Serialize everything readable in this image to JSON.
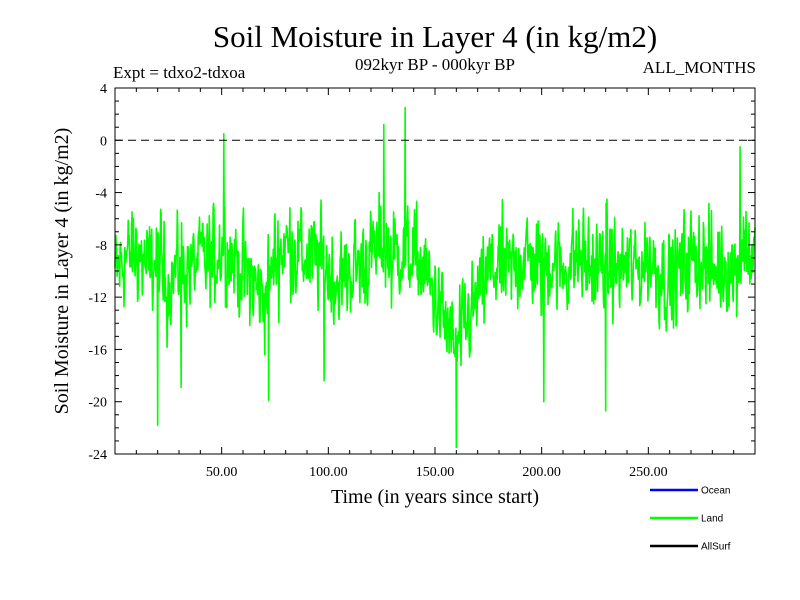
{
  "chart_data": {
    "type": "line",
    "title": "Soil Moisture in Layer 4 (in kg/m2)",
    "subtitle_left": "Expt = tdxo2-tdxoa",
    "subtitle_center": "092kyr BP - 000kyr BP",
    "subtitle_right": "ALL_MONTHS",
    "xlabel": "Time (in years since start)",
    "ylabel": "Soil Moisture in Layer 4 (in kg/m2)",
    "xlim": [
      0,
      300
    ],
    "ylim": [
      -24,
      4
    ],
    "xticks": [
      50,
      100,
      150,
      200,
      250
    ],
    "xtick_labels": [
      "50.00",
      "100.00",
      "150.00",
      "200.00",
      "250.00"
    ],
    "yticks": [
      4,
      0,
      -4,
      -8,
      -12,
      -16,
      -20,
      -24
    ],
    "ytick_labels": [
      "4",
      "0",
      "-4",
      "-8",
      "-12",
      "-16",
      "-20",
      "-24"
    ],
    "reference_line": {
      "y": 0,
      "style": "dashed"
    },
    "legend": [
      {
        "name": "Ocean",
        "color": "#0000ff"
      },
      {
        "name": "Land",
        "color": "#00ff00"
      },
      {
        "name": "AllSurf",
        "color": "#000000"
      }
    ],
    "series": [
      {
        "name": "Land",
        "color": "#00ff00",
        "x": [
          0,
          5,
          10,
          15,
          20,
          25,
          30,
          35,
          40,
          45,
          50,
          55,
          60,
          65,
          70,
          75,
          80,
          85,
          90,
          95,
          100,
          105,
          110,
          115,
          120,
          125,
          130,
          135,
          140,
          145,
          150,
          155,
          160,
          165,
          170,
          175,
          180,
          185,
          190,
          195,
          200,
          205,
          210,
          215,
          220,
          225,
          230,
          235,
          240,
          245,
          250,
          255,
          260,
          265,
          270,
          275,
          280,
          285,
          290,
          295,
          300
        ],
        "y": [
          -10,
          -9,
          -8.5,
          -10,
          -9,
          -11,
          -9.5,
          -10,
          -9,
          -9.5,
          -8,
          -9,
          -10,
          -11,
          -12,
          -9,
          -8,
          -8.5,
          -9,
          -9,
          -10,
          -11,
          -10,
          -9.5,
          -9,
          -8,
          -9,
          -8.5,
          -9,
          -10,
          -12,
          -14,
          -16,
          -14,
          -12,
          -10,
          -9.5,
          -10,
          -9,
          -9,
          -10,
          -9,
          -10,
          -9,
          -9,
          -10,
          -9,
          -10,
          -9.5,
          -10,
          -9,
          -10,
          -11,
          -10,
          -9,
          -9,
          -10,
          -9.5,
          -10,
          -8,
          -9
        ],
        "spikes": [
          {
            "x": 20,
            "y": -21.8
          },
          {
            "x": 31,
            "y": -18.9
          },
          {
            "x": 51,
            "y": 0.5
          },
          {
            "x": 72,
            "y": -19.9
          },
          {
            "x": 98,
            "y": -18.4
          },
          {
            "x": 126,
            "y": 1.2
          },
          {
            "x": 136,
            "y": 2.5
          },
          {
            "x": 160,
            "y": -23.5
          },
          {
            "x": 201,
            "y": -20.0
          },
          {
            "x": 230,
            "y": -20.7
          },
          {
            "x": 293,
            "y": -0.5
          }
        ]
      }
    ]
  }
}
